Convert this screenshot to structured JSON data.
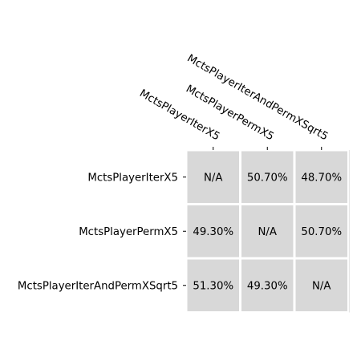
{
  "chart_data": {
    "type": "heatmap",
    "title": "",
    "row_labels": [
      "MctsPlayerIterX5",
      "MctsPlayerPermX5",
      "MctsPlayerIterAndPermXSqrt5"
    ],
    "col_labels": [
      "MctsPlayerIterX5",
      "MctsPlayerPermX5",
      "MctsPlayerIterAndPermXSqrt5"
    ],
    "cells": [
      [
        "N/A",
        "50.70%",
        "48.70%"
      ],
      [
        "49.30%",
        "N/A",
        "50.70%"
      ],
      [
        "51.30%",
        "49.30%",
        "N/A"
      ]
    ],
    "cell_color": "#d8d8d8",
    "grid_color": "#ffffff",
    "col_labels_position": "top"
  }
}
